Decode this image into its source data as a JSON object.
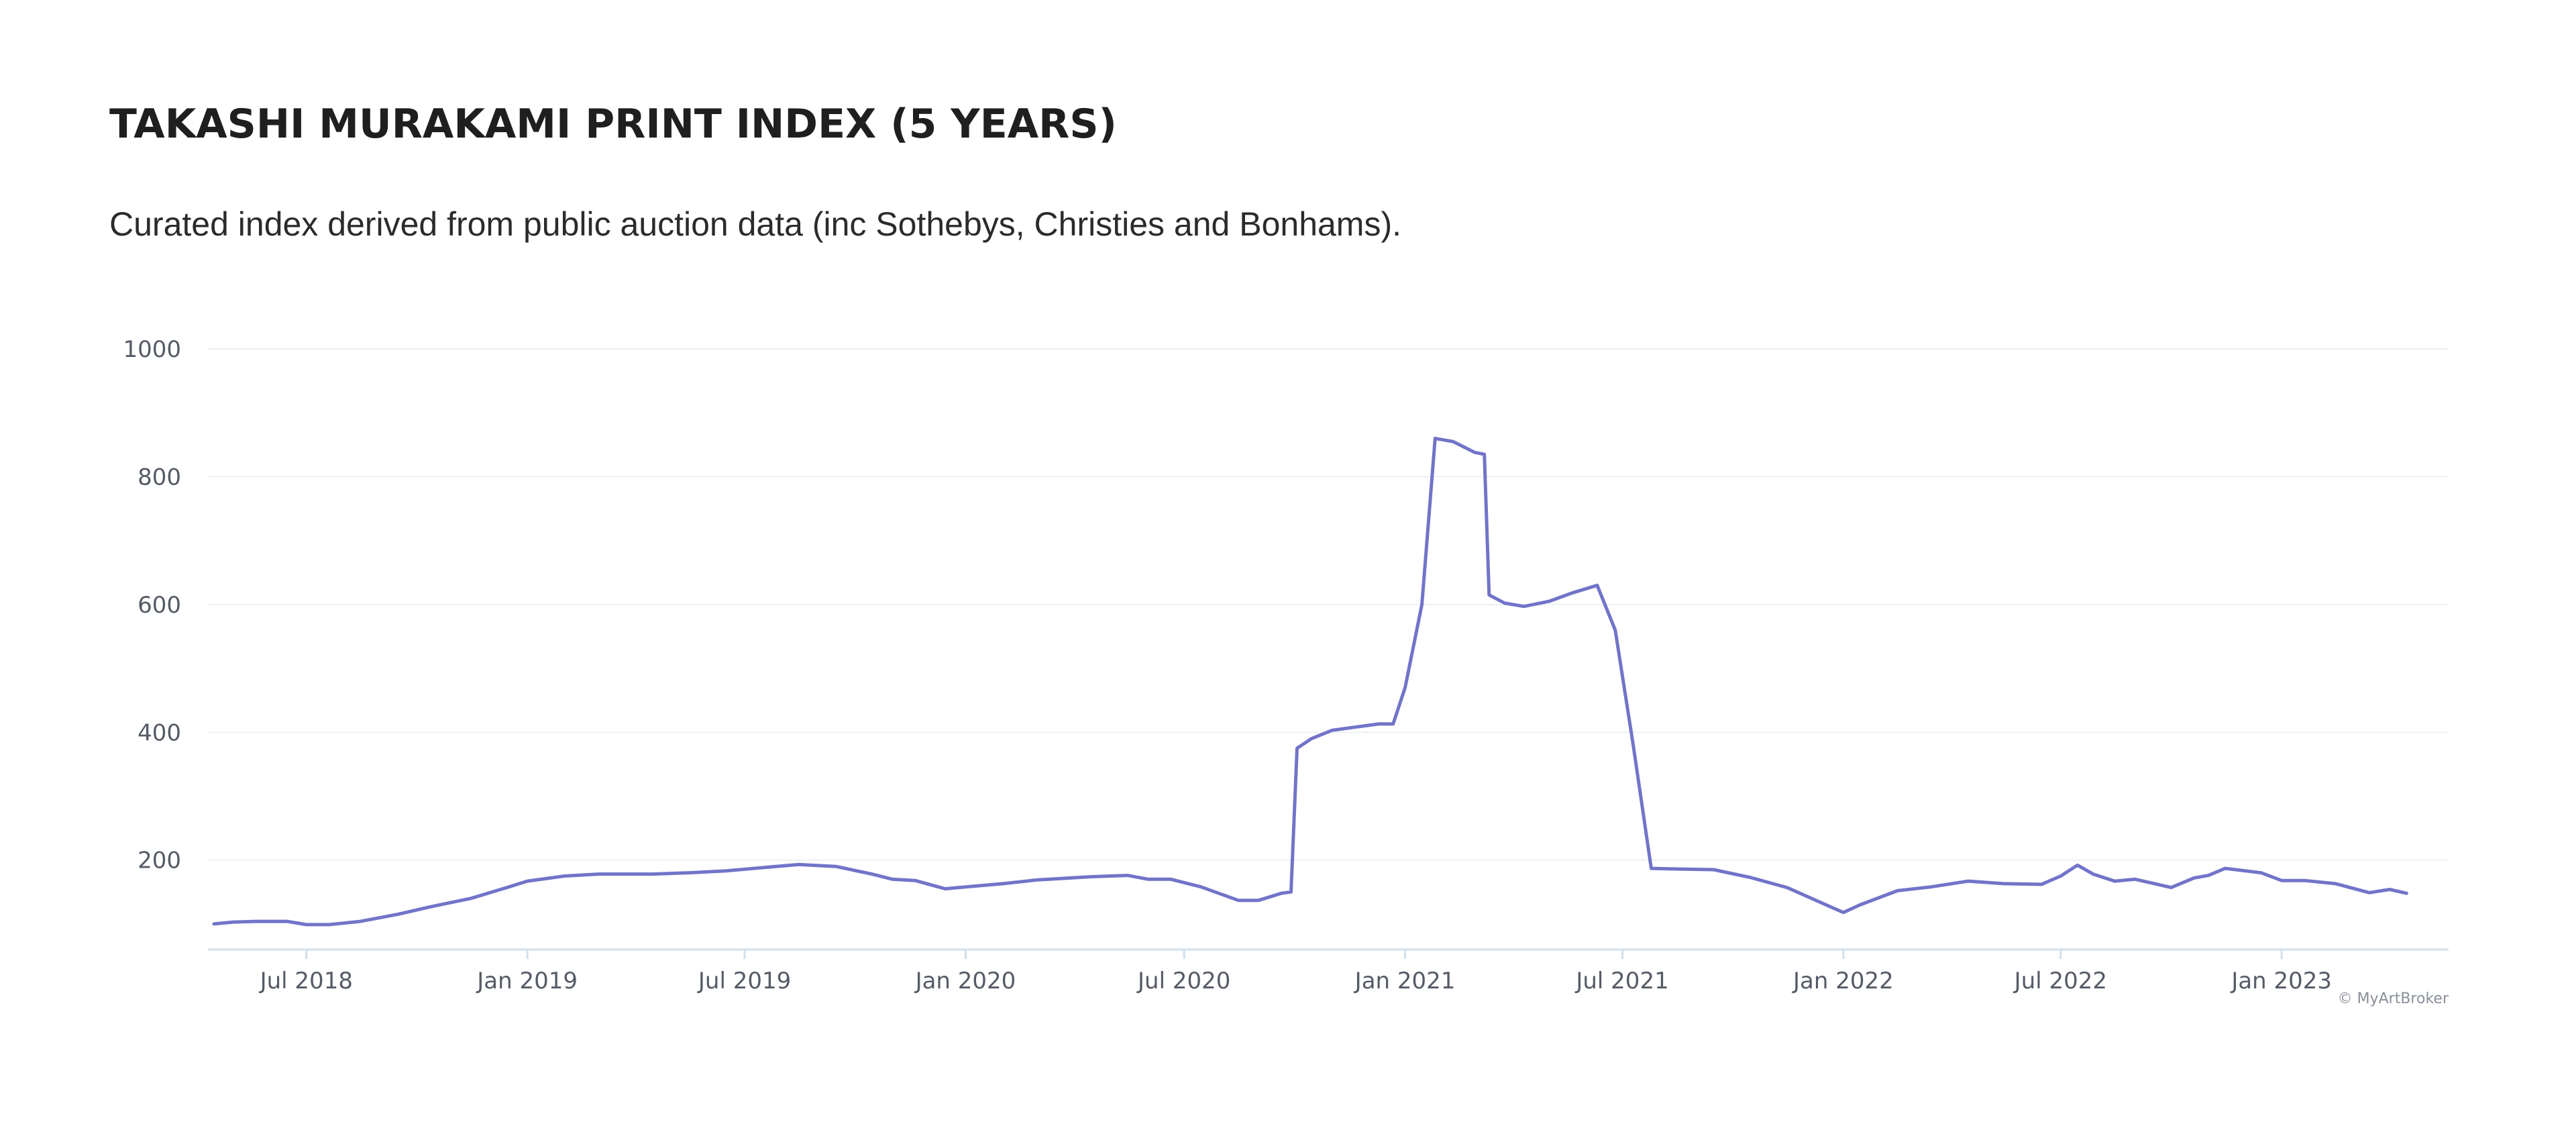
{
  "header": {
    "title": "TAKASHI MURAKAMI PRINT INDEX (5 YEARS)",
    "subtitle": "Curated index derived from public auction data (inc Sothebys, Christies and Bonhams)."
  },
  "credit": "© MyArtBroker",
  "colors": {
    "line": "#7274c9",
    "grid": "#eef0f3",
    "axis": "#cfe0ee",
    "tick_text": "#555b66"
  },
  "chart_data": {
    "type": "line",
    "title": "TAKASHI MURAKAMI PRINT INDEX (5 YEARS)",
    "xlabel": "",
    "ylabel": "",
    "ylim": [
      60,
      1000
    ],
    "yticks": [
      200,
      400,
      600,
      800,
      1000
    ],
    "xlim": [
      "2018-04-10",
      "2023-05-20"
    ],
    "xticks": [
      {
        "date": "2018-07-01",
        "label": "Jul 2018"
      },
      {
        "date": "2019-01-01",
        "label": "Jan 2019"
      },
      {
        "date": "2019-07-01",
        "label": "Jul 2019"
      },
      {
        "date": "2020-01-01",
        "label": "Jan 2020"
      },
      {
        "date": "2020-07-01",
        "label": "Jul 2020"
      },
      {
        "date": "2021-01-01",
        "label": "Jan 2021"
      },
      {
        "date": "2021-07-01",
        "label": "Jul 2021"
      },
      {
        "date": "2022-01-01",
        "label": "Jan 2022"
      },
      {
        "date": "2022-07-01",
        "label": "Jul 2022"
      },
      {
        "date": "2023-01-01",
        "label": "Jan 2023"
      }
    ],
    "grid": true,
    "legend": "none",
    "series": [
      {
        "points": [
          [
            "2018-04-15",
            100
          ],
          [
            "2018-05-01",
            103
          ],
          [
            "2018-05-20",
            104
          ],
          [
            "2018-06-15",
            104
          ],
          [
            "2018-07-01",
            99
          ],
          [
            "2018-07-20",
            99
          ],
          [
            "2018-08-15",
            104
          ],
          [
            "2018-09-15",
            115
          ],
          [
            "2018-10-15",
            128
          ],
          [
            "2018-11-15",
            140
          ],
          [
            "2018-12-15",
            157
          ],
          [
            "2019-01-01",
            167
          ],
          [
            "2019-02-01",
            175
          ],
          [
            "2019-03-01",
            178
          ],
          [
            "2019-04-15",
            178
          ],
          [
            "2019-05-15",
            180
          ],
          [
            "2019-06-15",
            183
          ],
          [
            "2019-07-15",
            188
          ],
          [
            "2019-08-15",
            193
          ],
          [
            "2019-09-15",
            190
          ],
          [
            "2019-10-15",
            178
          ],
          [
            "2019-11-01",
            170
          ],
          [
            "2019-11-20",
            168
          ],
          [
            "2019-12-15",
            155
          ],
          [
            "2020-01-01",
            158
          ],
          [
            "2020-02-01",
            163
          ],
          [
            "2020-03-01",
            169
          ],
          [
            "2020-04-15",
            174
          ],
          [
            "2020-05-15",
            176
          ],
          [
            "2020-06-01",
            170
          ],
          [
            "2020-06-20",
            170
          ],
          [
            "2020-07-15",
            158
          ],
          [
            "2020-08-15",
            137
          ],
          [
            "2020-09-01",
            137
          ],
          [
            "2020-09-20",
            148
          ],
          [
            "2020-09-28",
            150
          ],
          [
            "2020-10-03",
            375
          ],
          [
            "2020-10-15",
            390
          ],
          [
            "2020-11-01",
            403
          ],
          [
            "2020-11-20",
            408
          ],
          [
            "2020-12-10",
            413
          ],
          [
            "2020-12-22",
            413
          ],
          [
            "2021-01-01",
            470
          ],
          [
            "2021-01-15",
            600
          ],
          [
            "2021-01-26",
            860
          ],
          [
            "2021-02-10",
            855
          ],
          [
            "2021-02-28",
            838
          ],
          [
            "2021-03-08",
            835
          ],
          [
            "2021-03-12",
            615
          ],
          [
            "2021-03-25",
            602
          ],
          [
            "2021-04-10",
            597
          ],
          [
            "2021-05-01",
            605
          ],
          [
            "2021-05-20",
            618
          ],
          [
            "2021-06-10",
            630
          ],
          [
            "2021-06-25",
            560
          ],
          [
            "2021-07-10",
            380
          ],
          [
            "2021-07-25",
            187
          ],
          [
            "2021-08-15",
            186
          ],
          [
            "2021-09-15",
            185
          ],
          [
            "2021-10-15",
            173
          ],
          [
            "2021-11-15",
            157
          ],
          [
            "2021-12-15",
            132
          ],
          [
            "2022-01-01",
            118
          ],
          [
            "2022-01-15",
            130
          ],
          [
            "2022-02-15",
            152
          ],
          [
            "2022-03-15",
            158
          ],
          [
            "2022-04-15",
            167
          ],
          [
            "2022-05-15",
            163
          ],
          [
            "2022-06-15",
            162
          ],
          [
            "2022-07-01",
            175
          ],
          [
            "2022-07-15",
            192
          ],
          [
            "2022-07-28",
            178
          ],
          [
            "2022-08-15",
            167
          ],
          [
            "2022-09-01",
            170
          ],
          [
            "2022-10-01",
            157
          ],
          [
            "2022-10-20",
            172
          ],
          [
            "2022-11-01",
            176
          ],
          [
            "2022-11-15",
            187
          ],
          [
            "2022-12-15",
            180
          ],
          [
            "2023-01-01",
            168
          ],
          [
            "2023-01-20",
            168
          ],
          [
            "2023-02-15",
            163
          ],
          [
            "2023-03-15",
            149
          ],
          [
            "2023-04-01",
            154
          ],
          [
            "2023-04-15",
            148
          ]
        ]
      }
    ]
  }
}
